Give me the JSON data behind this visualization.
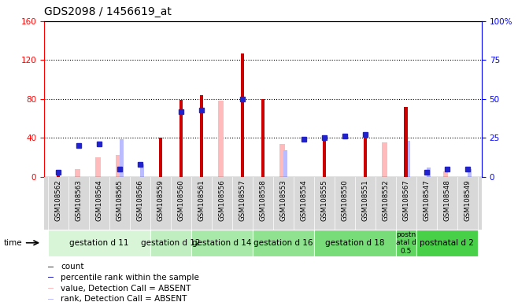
{
  "title": "GDS2098 / 1456619_at",
  "samples": [
    "GSM108562",
    "GSM108563",
    "GSM108564",
    "GSM108565",
    "GSM108566",
    "GSM108559",
    "GSM108560",
    "GSM108561",
    "GSM108556",
    "GSM108557",
    "GSM108558",
    "GSM108553",
    "GSM108554",
    "GSM108555",
    "GSM108550",
    "GSM108551",
    "GSM108552",
    "GSM108567",
    "GSM108547",
    "GSM108548",
    "GSM108549"
  ],
  "count": [
    2,
    0,
    0,
    0,
    0,
    40,
    79,
    84,
    0,
    127,
    80,
    0,
    0,
    38,
    0,
    40,
    0,
    72,
    0,
    0,
    0
  ],
  "percentile_rank": [
    3,
    20,
    21,
    5,
    8,
    0,
    42,
    43,
    0,
    50,
    0,
    0,
    24,
    25,
    26,
    27,
    0,
    0,
    3,
    5,
    5
  ],
  "value_absent": [
    0,
    8,
    20,
    22,
    0,
    0,
    0,
    0,
    78,
    0,
    0,
    34,
    0,
    0,
    0,
    0,
    35,
    0,
    0,
    5,
    0
  ],
  "rank_absent": [
    0,
    0,
    0,
    24,
    8,
    0,
    0,
    0,
    0,
    0,
    0,
    17,
    0,
    0,
    0,
    0,
    0,
    23,
    6,
    0,
    5
  ],
  "groups": [
    {
      "label": "gestation d 11",
      "start": 0,
      "end": 5
    },
    {
      "label": "gestation d 12",
      "start": 5,
      "end": 7
    },
    {
      "label": "gestation d 14",
      "start": 7,
      "end": 10
    },
    {
      "label": "gestation d 16",
      "start": 10,
      "end": 13
    },
    {
      "label": "gestation d 18",
      "start": 13,
      "end": 17
    },
    {
      "label": "postn\natal d\n0.5",
      "start": 17,
      "end": 18
    },
    {
      "label": "postnatal d 2",
      "start": 18,
      "end": 21
    }
  ],
  "group_colors": [
    "#d8f5d8",
    "#c0eec0",
    "#a8e8a8",
    "#90e290",
    "#78dc78",
    "#60d660",
    "#48d048"
  ],
  "ylim_left": [
    0,
    160
  ],
  "ylim_right": [
    0,
    100
  ],
  "yticks_left": [
    0,
    40,
    80,
    120,
    160
  ],
  "yticks_right": [
    0,
    25,
    50,
    75,
    100
  ],
  "yticklabels_right": [
    "0",
    "25",
    "50",
    "75",
    "100%"
  ],
  "count_color": "#cc0000",
  "rank_color": "#2222cc",
  "value_absent_color": "#ffbbbb",
  "rank_absent_color": "#bbbbff",
  "bg_color": "#ffffff",
  "xlabel_bg": "#d8d8d8",
  "legend_labels": [
    "count",
    "percentile rank within the sample",
    "value, Detection Call = ABSENT",
    "rank, Detection Call = ABSENT"
  ]
}
